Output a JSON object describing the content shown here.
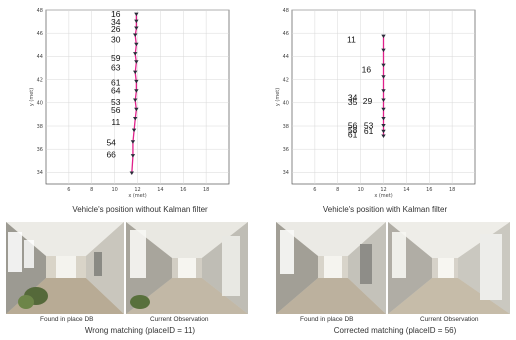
{
  "chart_data": [
    {
      "type": "scatter",
      "title": "",
      "caption": "Vehicle's position without Kalman filter",
      "xlabel": "x (met)",
      "ylabel": "y (met)",
      "xlim": [
        4,
        20
      ],
      "ylim": [
        33,
        48
      ],
      "xticks": [
        6,
        8,
        10,
        12,
        14,
        16,
        18
      ],
      "yticks": [
        34,
        36,
        38,
        40,
        42,
        44,
        46,
        48
      ],
      "track": [
        [
          11.9,
          47.6
        ],
        [
          11.9,
          47.0
        ],
        [
          11.9,
          46.4
        ],
        [
          11.8,
          45.8
        ],
        [
          11.9,
          45.0
        ],
        [
          11.8,
          44.2
        ],
        [
          11.9,
          43.5
        ],
        [
          11.8,
          42.6
        ],
        [
          11.9,
          41.8
        ],
        [
          11.9,
          41.0
        ],
        [
          11.8,
          40.2
        ],
        [
          11.9,
          39.4
        ],
        [
          11.8,
          38.6
        ],
        [
          11.7,
          37.6
        ],
        [
          11.6,
          36.6
        ],
        [
          11.6,
          35.4
        ],
        [
          11.5,
          33.9
        ]
      ],
      "place_labels": [
        {
          "text": "16",
          "x": 10.1,
          "y": 47.4
        },
        {
          "text": "34",
          "x": 10.1,
          "y": 46.7
        },
        {
          "text": "26",
          "x": 10.1,
          "y": 46.1
        },
        {
          "text": "30",
          "x": 10.1,
          "y": 45.2
        },
        {
          "text": "59",
          "x": 10.1,
          "y": 43.6
        },
        {
          "text": "63",
          "x": 10.1,
          "y": 42.8
        },
        {
          "text": "61",
          "x": 10.1,
          "y": 41.5
        },
        {
          "text": "64",
          "x": 10.1,
          "y": 40.8
        },
        {
          "text": "53",
          "x": 10.1,
          "y": 39.8
        },
        {
          "text": "56",
          "x": 10.1,
          "y": 39.1
        },
        {
          "text": "11",
          "x": 10.1,
          "y": 38.1
        },
        {
          "text": "54",
          "x": 9.7,
          "y": 36.3
        },
        {
          "text": "66",
          "x": 9.7,
          "y": 35.3
        }
      ]
    },
    {
      "type": "scatter",
      "title": "",
      "caption": "Vehicle's position with Kalman filter",
      "xlabel": "x (met)",
      "ylabel": "y (met)",
      "xlim": [
        4,
        20
      ],
      "ylim": [
        33,
        48
      ],
      "xticks": [
        6,
        8,
        10,
        12,
        14,
        16,
        18
      ],
      "yticks": [
        34,
        36,
        38,
        40,
        42,
        44,
        46,
        48
      ],
      "track": [
        [
          12.0,
          45.7
        ],
        [
          12.0,
          44.5
        ],
        [
          12.0,
          43.2
        ],
        [
          12.0,
          42.2
        ],
        [
          12.0,
          41.0
        ],
        [
          12.0,
          40.2
        ],
        [
          12.0,
          39.4
        ],
        [
          12.0,
          38.6
        ],
        [
          12.0,
          38.0
        ],
        [
          12.0,
          37.5
        ],
        [
          12.0,
          37.1
        ]
      ],
      "place_labels": [
        {
          "text": "11",
          "x": 9.2,
          "y": 45.2
        },
        {
          "text": "16",
          "x": 10.5,
          "y": 42.6
        },
        {
          "text": "34",
          "x": 9.3,
          "y": 40.2
        },
        {
          "text": "35",
          "x": 9.3,
          "y": 39.8
        },
        {
          "text": "29",
          "x": 10.6,
          "y": 39.9
        },
        {
          "text": "56",
          "x": 9.3,
          "y": 37.8
        },
        {
          "text": "58",
          "x": 9.3,
          "y": 37.4
        },
        {
          "text": "61",
          "x": 9.3,
          "y": 37.0
        },
        {
          "text": "53",
          "x": 10.7,
          "y": 37.8
        },
        {
          "text": "61",
          "x": 10.7,
          "y": 37.3
        }
      ]
    }
  ],
  "photos": {
    "left": {
      "found_label": "Found in place DB",
      "current_label": "Current Observation",
      "caption": "Wrong matching (placeID = 11)"
    },
    "right": {
      "found_label": "Found in place DB",
      "current_label": "Current Observation",
      "caption": "Corrected matching (placeID = 56)"
    }
  },
  "colors": {
    "track_line": "#e0208a",
    "marker": "#2b2b3a",
    "grid": "#d8d8d8",
    "axis": "#555555"
  }
}
